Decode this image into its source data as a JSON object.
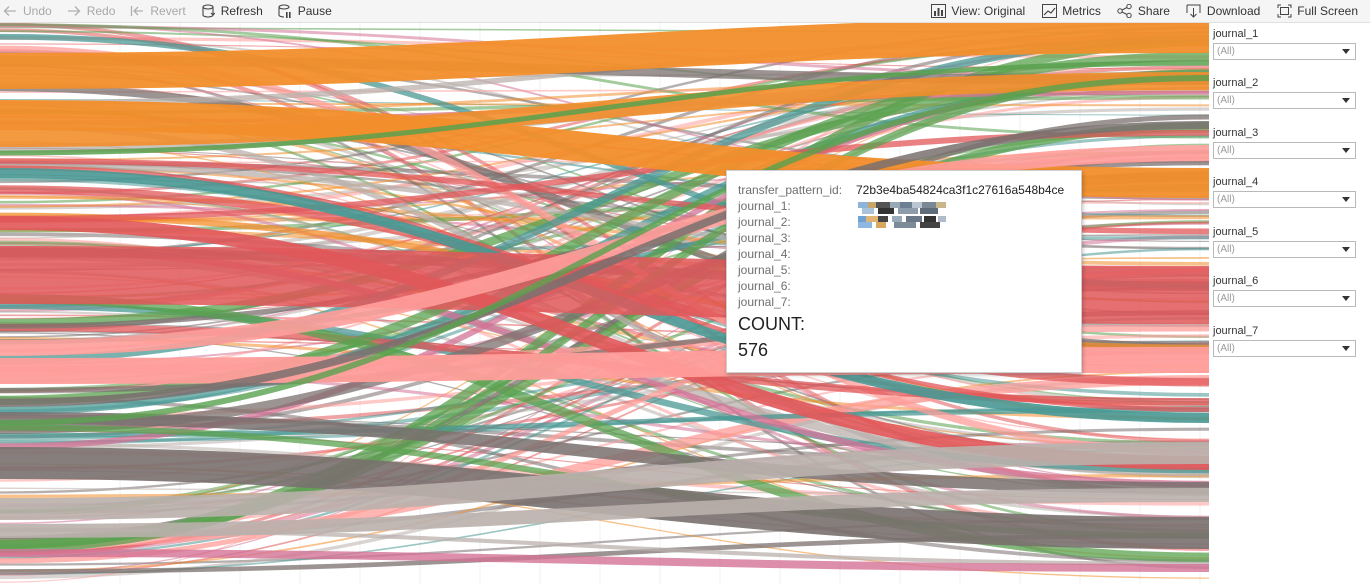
{
  "toolbar": {
    "undo": "Undo",
    "redo": "Redo",
    "revert": "Revert",
    "refresh": "Refresh",
    "pause": "Pause",
    "view": "View: Original",
    "metrics": "Metrics",
    "share": "Share",
    "download": "Download",
    "fullscreen": "Full Screen"
  },
  "filters": [
    {
      "label": "journal_1",
      "value": "(All)"
    },
    {
      "label": "journal_2",
      "value": "(All)"
    },
    {
      "label": "journal_3",
      "value": "(All)"
    },
    {
      "label": "journal_4",
      "value": "(All)"
    },
    {
      "label": "journal_5",
      "value": "(All)"
    },
    {
      "label": "journal_6",
      "value": "(All)"
    },
    {
      "label": "journal_7",
      "value": "(All)"
    }
  ],
  "tooltip": {
    "rows": [
      {
        "key": "transfer_pattern_id:",
        "value": "72b3e4ba54824ca3f1c27616a548b4ce"
      },
      {
        "key": "journal_1:",
        "value": ""
      },
      {
        "key": "journal_2:",
        "value": ""
      },
      {
        "key": "journal_3:",
        "value": ""
      },
      {
        "key": "journal_4:",
        "value": ""
      },
      {
        "key": "journal_5:",
        "value": ""
      },
      {
        "key": "journal_6:",
        "value": ""
      },
      {
        "key": "journal_7:",
        "value": ""
      }
    ],
    "count_label": "COUNT:",
    "count_value": "576"
  },
  "colors": {
    "orange": "#f28e2b",
    "coral": "#e15759",
    "pink": "#ff9d9a",
    "gray": "#79706e",
    "lightgray": "#bab0ac",
    "green": "#59a14f",
    "teal": "#499894",
    "mauve": "#d37295"
  }
}
